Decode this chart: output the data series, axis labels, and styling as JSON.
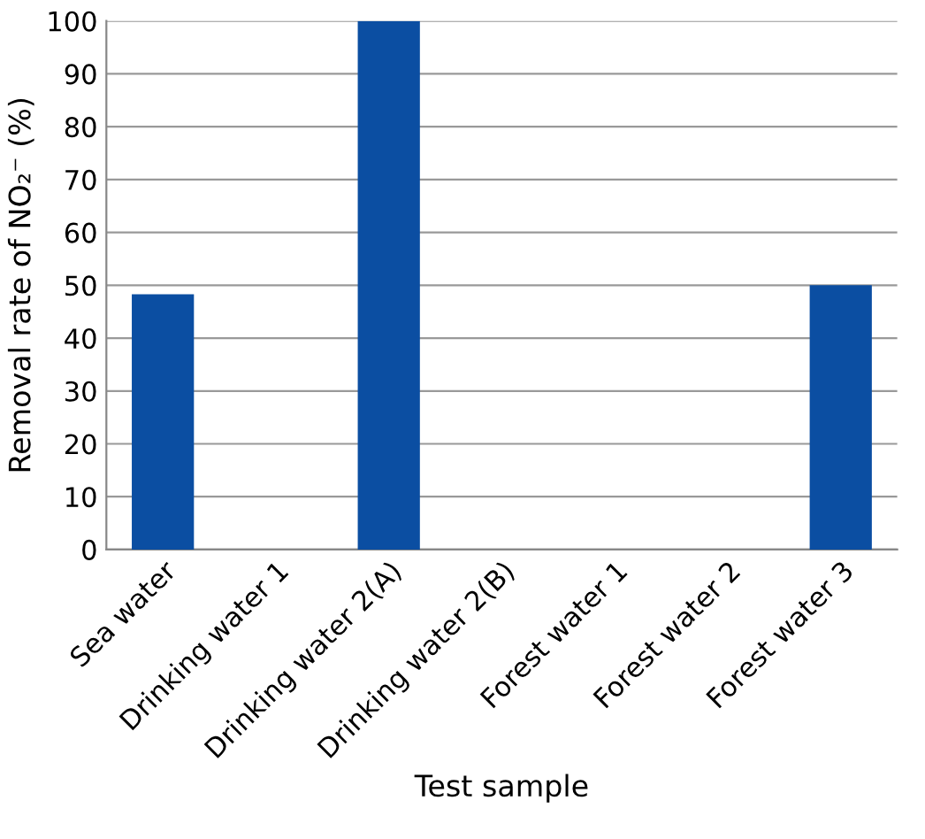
{
  "chart_data": {
    "type": "bar",
    "xlabel": "Test sample",
    "ylabel": "Removal rate of NO₂⁻ (%)",
    "categories": [
      "Sea water",
      "Drinking water 1",
      "Drinking water 2(A)",
      "Drinking water 2(B)",
      "Forest water 1",
      "Forest water 2",
      "Forest water 3"
    ],
    "values": [
      48.3,
      0,
      100,
      0,
      0,
      0,
      50
    ],
    "color": "#0b4ea2",
    "ylim": [
      0,
      100
    ],
    "yticks": [
      0,
      10,
      20,
      30,
      40,
      50,
      60,
      70,
      80,
      90,
      100
    ],
    "grid": "y"
  }
}
